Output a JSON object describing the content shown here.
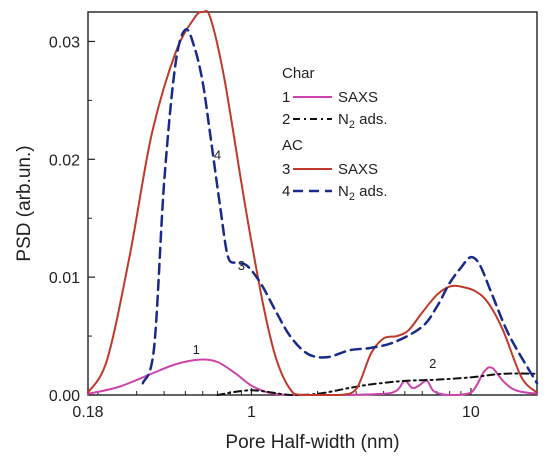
{
  "chart_data": {
    "type": "line",
    "title": "",
    "xlabel": "Pore  Half-width  (nm)",
    "ylabel": "PSD  (arb.un.)",
    "xscale": "log",
    "xlim": [
      0.18,
      20
    ],
    "ylim": [
      0,
      0.0325
    ],
    "grid": false,
    "legend_placement": "top-right",
    "x_ticks": [
      {
        "value": 0.18,
        "label": "0.18"
      },
      {
        "value": 1,
        "label": "1"
      },
      {
        "value": 10,
        "label": "10"
      }
    ],
    "y_ticks": [
      {
        "value": 0,
        "label": "0.00"
      },
      {
        "value": 0.01,
        "label": "0.01"
      },
      {
        "value": 0.02,
        "label": "0.02"
      },
      {
        "value": 0.03,
        "label": "0.03"
      }
    ],
    "legend": {
      "groups": [
        {
          "title": "Char",
          "entries": [
            {
              "id": "1",
              "label": "SAXS",
              "series": 0
            },
            {
              "id": "2",
              "label": "N",
              "sub": "2",
              "suffix": " ads.",
              "series": 1
            }
          ]
        },
        {
          "title": "AC",
          "entries": [
            {
              "id": "3",
              "label": "SAXS",
              "series": 2
            },
            {
              "id": "4",
              "label": "N",
              "sub": "2",
              "suffix": " ads.",
              "series": 3
            }
          ]
        }
      ]
    },
    "series": [
      {
        "id": "1",
        "group": "Char",
        "method": "SAXS",
        "color": "#cc44aa",
        "dash": "solid",
        "width": 2,
        "label_at": [
          0.56,
          0.0035
        ],
        "points": [
          [
            0.18,
            0.0001
          ],
          [
            0.25,
            0.0007
          ],
          [
            0.35,
            0.0018
          ],
          [
            0.45,
            0.0026
          ],
          [
            0.58,
            0.003
          ],
          [
            0.7,
            0.0028
          ],
          [
            0.85,
            0.0018
          ],
          [
            1.0,
            0.0008
          ],
          [
            1.2,
            0.0002
          ],
          [
            1.5,
            0
          ],
          [
            2.5,
            0
          ],
          [
            4.0,
            0.0001
          ],
          [
            4.6,
            0.0004
          ],
          [
            5.0,
            0.0012
          ],
          [
            5.4,
            0.0006
          ],
          [
            5.8,
            0.0008
          ],
          [
            6.3,
            0.0012
          ],
          [
            6.8,
            0.0003
          ],
          [
            8.0,
            0
          ],
          [
            10.0,
            0.0002
          ],
          [
            11.5,
            0.002
          ],
          [
            12.5,
            0.0023
          ],
          [
            14.0,
            0.0012
          ],
          [
            16.0,
            0.0004
          ],
          [
            20.0,
            0.0001
          ]
        ]
      },
      {
        "id": "2",
        "group": "Char",
        "method": "N2 ads.",
        "color": "#111111",
        "dash": "dashdot",
        "width": 2,
        "label_at": [
          6.7,
          0.0023
        ],
        "points": [
          [
            0.7,
            0
          ],
          [
            1.0,
            0.0004
          ],
          [
            1.5,
            0
          ],
          [
            2.0,
            0.0001
          ],
          [
            2.8,
            0.0006
          ],
          [
            3.5,
            0.0009
          ],
          [
            5.0,
            0.0012
          ],
          [
            7.0,
            0.0013
          ],
          [
            10.0,
            0.0015
          ],
          [
            14.0,
            0.0018
          ],
          [
            20.0,
            0.0018
          ]
        ]
      },
      {
        "id": "3",
        "group": "AC",
        "method": "SAXS",
        "color": "#c0392b",
        "dash": "solid",
        "width": 2,
        "label_at": [
          0.9,
          0.0106
        ],
        "points": [
          [
            0.18,
            0.0002
          ],
          [
            0.22,
            0.003
          ],
          [
            0.28,
            0.012
          ],
          [
            0.35,
            0.022
          ],
          [
            0.45,
            0.029
          ],
          [
            0.55,
            0.032
          ],
          [
            0.6,
            0.0325
          ],
          [
            0.65,
            0.032
          ],
          [
            0.75,
            0.027
          ],
          [
            0.9,
            0.018
          ],
          [
            1.0,
            0.013
          ],
          [
            1.15,
            0.007
          ],
          [
            1.3,
            0.003
          ],
          [
            1.5,
            0.0005
          ],
          [
            1.7,
            0
          ],
          [
            2.5,
            0
          ],
          [
            3.0,
            0.0005
          ],
          [
            3.5,
            0.0035
          ],
          [
            4.0,
            0.0048
          ],
          [
            4.6,
            0.005
          ],
          [
            5.2,
            0.0055
          ],
          [
            6.0,
            0.007
          ],
          [
            7.0,
            0.0085
          ],
          [
            8.0,
            0.0092
          ],
          [
            9.0,
            0.0092
          ],
          [
            10.5,
            0.0088
          ],
          [
            12.0,
            0.0078
          ],
          [
            14.0,
            0.0055
          ],
          [
            17.0,
            0.0015
          ],
          [
            20.0,
            0.0002
          ]
        ]
      },
      {
        "id": "4",
        "group": "AC",
        "method": "N2 ads.",
        "color": "#1a2a8a",
        "dash": "dashed",
        "width": 2.5,
        "label_at": [
          0.7,
          0.02
        ],
        "points": [
          [
            0.32,
            0.001
          ],
          [
            0.36,
            0.004
          ],
          [
            0.4,
            0.018
          ],
          [
            0.45,
            0.028
          ],
          [
            0.5,
            0.031
          ],
          [
            0.55,
            0.0295
          ],
          [
            0.6,
            0.0265
          ],
          [
            0.65,
            0.022
          ],
          [
            0.72,
            0.016
          ],
          [
            0.78,
            0.0118
          ],
          [
            0.85,
            0.0112
          ],
          [
            0.95,
            0.011
          ],
          [
            1.1,
            0.0095
          ],
          [
            1.3,
            0.007
          ],
          [
            1.5,
            0.005
          ],
          [
            1.8,
            0.0035
          ],
          [
            2.2,
            0.0032
          ],
          [
            2.8,
            0.0038
          ],
          [
            3.5,
            0.004
          ],
          [
            4.5,
            0.0045
          ],
          [
            6.0,
            0.0058
          ],
          [
            7.0,
            0.0075
          ],
          [
            8.0,
            0.0095
          ],
          [
            9.0,
            0.0108
          ],
          [
            10.0,
            0.0117
          ],
          [
            11.0,
            0.011
          ],
          [
            12.5,
            0.0085
          ],
          [
            15.0,
            0.005
          ],
          [
            20.0,
            0.001
          ]
        ]
      }
    ]
  }
}
